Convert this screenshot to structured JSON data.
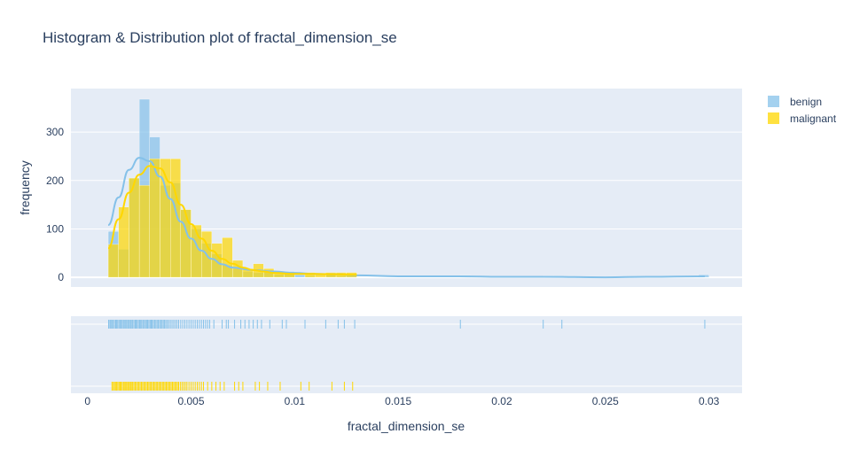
{
  "chart_data": {
    "type": "histogram",
    "title": "Histogram & Distribution plot of fractal_dimension_se",
    "xlabel": "fractal_dimension_se",
    "ylabel": "frequency",
    "xlim": [
      -0.0008,
      0.0316
    ],
    "ylim": [
      -20,
      390
    ],
    "x_ticks": [
      {
        "value": 0,
        "label": "0"
      },
      {
        "value": 0.005,
        "label": "0.005"
      },
      {
        "value": 0.01,
        "label": "0.01"
      },
      {
        "value": 0.015,
        "label": "0.015"
      },
      {
        "value": 0.02,
        "label": "0.02"
      },
      {
        "value": 0.025,
        "label": "0.025"
      },
      {
        "value": 0.03,
        "label": "0.03"
      }
    ],
    "y_ticks": [
      {
        "value": 0,
        "label": "0"
      },
      {
        "value": 100,
        "label": "100"
      },
      {
        "value": 200,
        "label": "200"
      },
      {
        "value": 300,
        "label": "300"
      }
    ],
    "grid": true,
    "legend_position": "top-right",
    "series": [
      {
        "name": "benign",
        "color": "#85c1e9",
        "bin_width": 0.0005,
        "bins": [
          {
            "x0": 0.001,
            "count": 95
          },
          {
            "x0": 0.0015,
            "count": 58
          },
          {
            "x0": 0.002,
            "count": 205
          },
          {
            "x0": 0.0025,
            "count": 368
          },
          {
            "x0": 0.003,
            "count": 290
          },
          {
            "x0": 0.0035,
            "count": 190
          },
          {
            "x0": 0.004,
            "count": 195
          },
          {
            "x0": 0.0045,
            "count": 140
          },
          {
            "x0": 0.005,
            "count": 100
          },
          {
            "x0": 0.0055,
            "count": 70
          },
          {
            "x0": 0.006,
            "count": 48
          },
          {
            "x0": 0.0065,
            "count": 25
          },
          {
            "x0": 0.007,
            "count": 18
          },
          {
            "x0": 0.0075,
            "count": 12
          },
          {
            "x0": 0.008,
            "count": 10
          },
          {
            "x0": 0.0085,
            "count": 12
          },
          {
            "x0": 0.009,
            "count": 6
          },
          {
            "x0": 0.0095,
            "count": 12
          },
          {
            "x0": 0.01,
            "count": 5
          },
          {
            "x0": 0.0105,
            "count": 3
          },
          {
            "x0": 0.0115,
            "count": 5
          },
          {
            "x0": 0.012,
            "count": 3
          },
          {
            "x0": 0.0125,
            "count": 3
          },
          {
            "x0": 0.018,
            "count": 4
          },
          {
            "x0": 0.022,
            "count": 3
          },
          {
            "x0": 0.0225,
            "count": 3
          },
          {
            "x0": 0.0295,
            "count": 5
          }
        ],
        "kde": [
          [
            0.001,
            108
          ],
          [
            0.0015,
            165
          ],
          [
            0.002,
            222
          ],
          [
            0.0025,
            247
          ],
          [
            0.003,
            240
          ],
          [
            0.0035,
            208
          ],
          [
            0.004,
            162
          ],
          [
            0.0045,
            115
          ],
          [
            0.005,
            80
          ],
          [
            0.0055,
            55
          ],
          [
            0.006,
            38
          ],
          [
            0.0065,
            27
          ],
          [
            0.007,
            20
          ],
          [
            0.008,
            15
          ],
          [
            0.009,
            12
          ],
          [
            0.01,
            9
          ],
          [
            0.011,
            7
          ],
          [
            0.012,
            6
          ],
          [
            0.013,
            4
          ],
          [
            0.015,
            2
          ],
          [
            0.018,
            2
          ],
          [
            0.02,
            1
          ],
          [
            0.022,
            1
          ],
          [
            0.025,
            0
          ],
          [
            0.027,
            1
          ],
          [
            0.0298,
            2
          ]
        ],
        "rug": [
          0.00102,
          0.00108,
          0.00113,
          0.00118,
          0.00124,
          0.0013,
          0.00136,
          0.00141,
          0.00146,
          0.00152,
          0.00158,
          0.00163,
          0.00168,
          0.00174,
          0.0018,
          0.00185,
          0.0019,
          0.00196,
          0.00202,
          0.00207,
          0.00212,
          0.00218,
          0.00224,
          0.0023,
          0.00235,
          0.0024,
          0.00246,
          0.00252,
          0.00257,
          0.00262,
          0.00268,
          0.00274,
          0.0028,
          0.00285,
          0.0029,
          0.00296,
          0.00302,
          0.00307,
          0.00312,
          0.00318,
          0.00324,
          0.0033,
          0.00336,
          0.00342,
          0.00348,
          0.00354,
          0.0036,
          0.00366,
          0.00372,
          0.00378,
          0.00385,
          0.00392,
          0.004,
          0.00408,
          0.00416,
          0.00424,
          0.00432,
          0.0044,
          0.0045,
          0.0046,
          0.0047,
          0.0048,
          0.0049,
          0.005,
          0.0051,
          0.0052,
          0.0053,
          0.0054,
          0.0055,
          0.0056,
          0.0057,
          0.0058,
          0.0059,
          0.0061,
          0.0065,
          0.0067,
          0.0068,
          0.0071,
          0.0074,
          0.0076,
          0.0078,
          0.008,
          0.0082,
          0.0084,
          0.0088,
          0.0094,
          0.0096,
          0.0105,
          0.0115,
          0.0121,
          0.0124,
          0.0129,
          0.018,
          0.022,
          0.0229,
          0.0298
        ]
      },
      {
        "name": "malignant",
        "color": "#ffd700",
        "bin_width": 0.0005,
        "bins": [
          {
            "x0": 0.001,
            "count": 68
          },
          {
            "x0": 0.0015,
            "count": 145
          },
          {
            "x0": 0.002,
            "count": 205
          },
          {
            "x0": 0.0025,
            "count": 190
          },
          {
            "x0": 0.003,
            "count": 245
          },
          {
            "x0": 0.0035,
            "count": 245
          },
          {
            "x0": 0.004,
            "count": 245
          },
          {
            "x0": 0.0045,
            "count": 140
          },
          {
            "x0": 0.005,
            "count": 108
          },
          {
            "x0": 0.0055,
            "count": 95
          },
          {
            "x0": 0.006,
            "count": 70
          },
          {
            "x0": 0.0065,
            "count": 82
          },
          {
            "x0": 0.007,
            "count": 35
          },
          {
            "x0": 0.0075,
            "count": 18
          },
          {
            "x0": 0.008,
            "count": 28
          },
          {
            "x0": 0.0085,
            "count": 18
          },
          {
            "x0": 0.009,
            "count": 8
          },
          {
            "x0": 0.0095,
            "count": 8
          },
          {
            "x0": 0.01,
            "count": 0
          },
          {
            "x0": 0.0105,
            "count": 10
          },
          {
            "x0": 0.011,
            "count": 8
          },
          {
            "x0": 0.0115,
            "count": 10
          },
          {
            "x0": 0.012,
            "count": 10
          },
          {
            "x0": 0.0125,
            "count": 10
          }
        ],
        "kde": [
          [
            0.001,
            60
          ],
          [
            0.0015,
            120
          ],
          [
            0.002,
            175
          ],
          [
            0.0025,
            212
          ],
          [
            0.003,
            230
          ],
          [
            0.0035,
            225
          ],
          [
            0.004,
            196
          ],
          [
            0.0045,
            150
          ],
          [
            0.005,
            110
          ],
          [
            0.0055,
            80
          ],
          [
            0.006,
            55
          ],
          [
            0.0065,
            38
          ],
          [
            0.007,
            28
          ],
          [
            0.0075,
            20
          ],
          [
            0.008,
            15
          ],
          [
            0.0085,
            12
          ],
          [
            0.009,
            9
          ],
          [
            0.01,
            7
          ],
          [
            0.011,
            7
          ],
          [
            0.012,
            6
          ],
          [
            0.013,
            5
          ]
        ],
        "rug": [
          0.00118,
          0.00124,
          0.0013,
          0.00135,
          0.0014,
          0.00146,
          0.00152,
          0.00157,
          0.00162,
          0.00168,
          0.00174,
          0.0018,
          0.00185,
          0.0019,
          0.00196,
          0.00202,
          0.00207,
          0.00212,
          0.00218,
          0.00224,
          0.0023,
          0.00236,
          0.00242,
          0.00248,
          0.00254,
          0.0026,
          0.00266,
          0.00272,
          0.00278,
          0.00284,
          0.0029,
          0.00296,
          0.00302,
          0.00308,
          0.00314,
          0.0032,
          0.00326,
          0.00332,
          0.00338,
          0.00344,
          0.0035,
          0.00356,
          0.00362,
          0.00368,
          0.00374,
          0.0038,
          0.00386,
          0.00392,
          0.00398,
          0.00404,
          0.0041,
          0.00416,
          0.00422,
          0.00428,
          0.00434,
          0.0044,
          0.00448,
          0.00456,
          0.00464,
          0.00472,
          0.0048,
          0.0049,
          0.005,
          0.0051,
          0.0052,
          0.0053,
          0.0054,
          0.0055,
          0.0056,
          0.0058,
          0.006,
          0.0062,
          0.0064,
          0.0066,
          0.0071,
          0.0073,
          0.0075,
          0.0081,
          0.0083,
          0.0087,
          0.0093,
          0.0103,
          0.0107,
          0.0118,
          0.0124,
          0.0128
        ]
      }
    ]
  }
}
